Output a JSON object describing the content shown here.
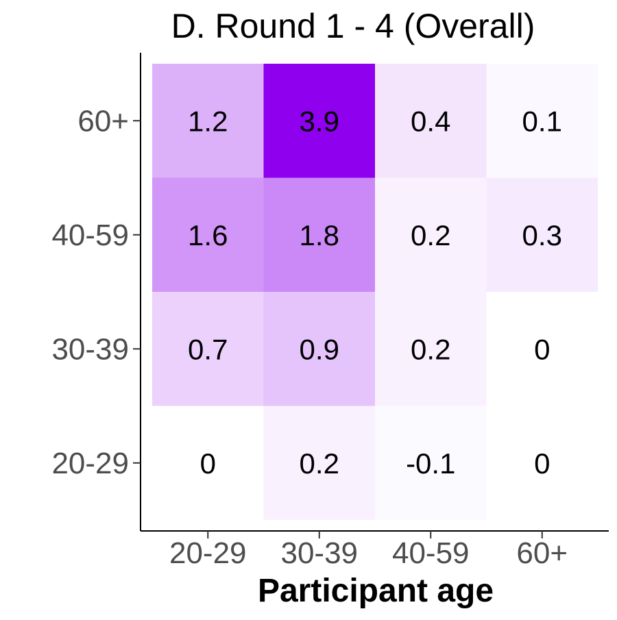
{
  "chart_data": {
    "type": "heatmap",
    "title": "D. Round 1 - 4 (Overall)",
    "xlabel": "Participant age",
    "ylabel": "",
    "x_categories": [
      "20-29",
      "30-39",
      "40-59",
      "60+"
    ],
    "y_categories": [
      "20-29",
      "30-39",
      "40-59",
      "60+"
    ],
    "values": [
      [
        0,
        0.2,
        -0.1,
        0
      ],
      [
        0.7,
        0.9,
        0.2,
        0
      ],
      [
        1.6,
        1.8,
        0.2,
        0.3
      ],
      [
        1.2,
        3.9,
        0.4,
        0.1
      ]
    ],
    "color_scale": {
      "low": "#3b3bff",
      "mid": "#ffffff",
      "high": "#8f00ee",
      "midpoint": 0,
      "max": 3.9,
      "min": -3.9
    },
    "legend": "none",
    "grid": false
  }
}
